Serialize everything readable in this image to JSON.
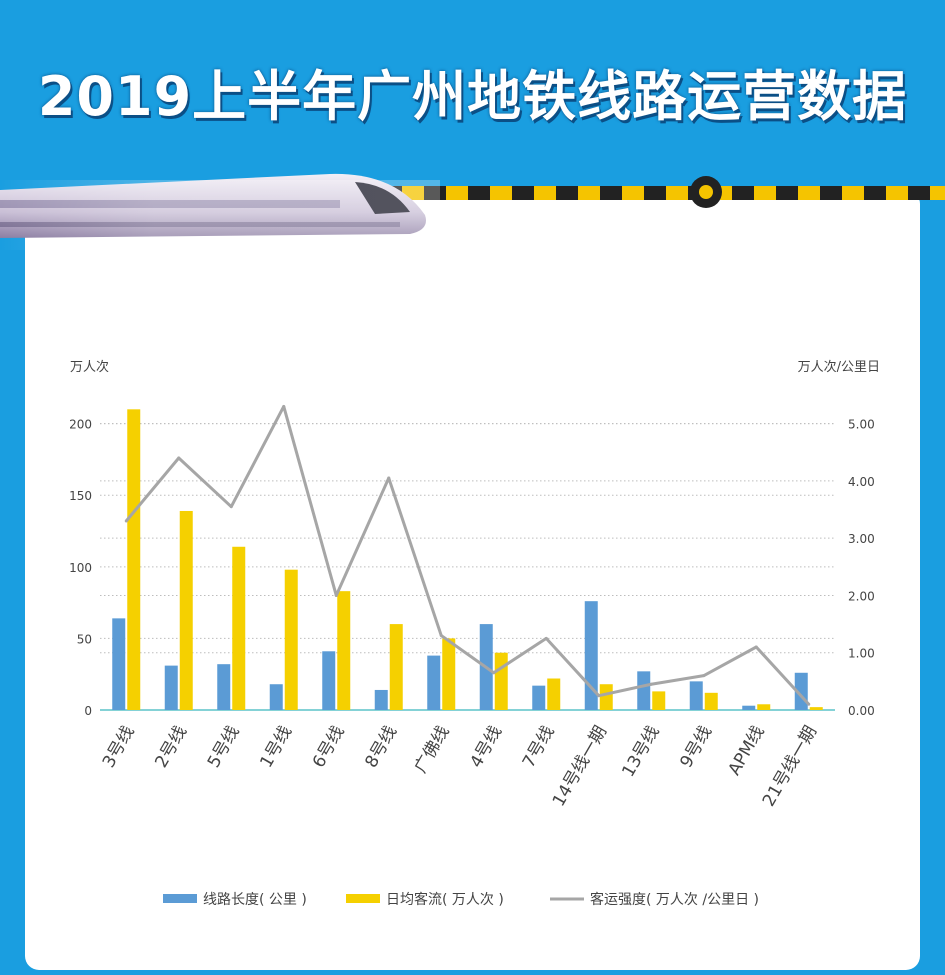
{
  "banner": {
    "title": "2019上半年广州地铁线路运营数据"
  },
  "colors": {
    "bar_length": "#5b9bd5",
    "bar_flow": "#f5d000",
    "line_intensity": "#a6a6a6",
    "background": "#1a9ee0"
  },
  "chart_data": {
    "type": "bar",
    "title": "",
    "categories": [
      "3号线",
      "2号线",
      "5号线",
      "1号线",
      "6号线",
      "8号线",
      "广佛线",
      "4号线",
      "7号线",
      "14号线一期",
      "13号线",
      "9号线",
      "APM线",
      "21号线一期"
    ],
    "series": [
      {
        "name": "线路长度( 公里 )",
        "type": "bar",
        "axis": "left",
        "values": [
          64,
          31,
          32,
          18,
          41,
          14,
          38,
          60,
          17,
          76,
          27,
          20,
          3,
          26
        ]
      },
      {
        "name": "日均客流( 万人次 )",
        "type": "bar",
        "axis": "left",
        "values": [
          210,
          139,
          114,
          98,
          83,
          60,
          50,
          40,
          22,
          18,
          13,
          12,
          4,
          2
        ]
      },
      {
        "name": "客运强度( 万人次 /公里日 )",
        "type": "line",
        "axis": "right",
        "values": [
          3.3,
          4.4,
          3.55,
          5.3,
          2.0,
          4.05,
          1.3,
          0.65,
          1.25,
          0.25,
          0.45,
          0.6,
          1.1,
          0.1
        ]
      }
    ],
    "ylabel_left": "万人次",
    "ylabel_right": "万人次/公里日",
    "ylim_left": [
      0,
      220
    ],
    "ylim_right": [
      0,
      5.5
    ],
    "yticks_left": [
      "0",
      "50",
      "100",
      "150",
      "200"
    ],
    "yticks_left_values": [
      0,
      50,
      100,
      150,
      200
    ],
    "yticks_right": [
      "0.00",
      "1.00",
      "2.00",
      "3.00",
      "4.00",
      "5.00"
    ],
    "yticks_right_values": [
      0,
      1,
      2,
      3,
      4,
      5
    ],
    "grid": "horizontal-dotted",
    "legend_position": "bottom"
  }
}
